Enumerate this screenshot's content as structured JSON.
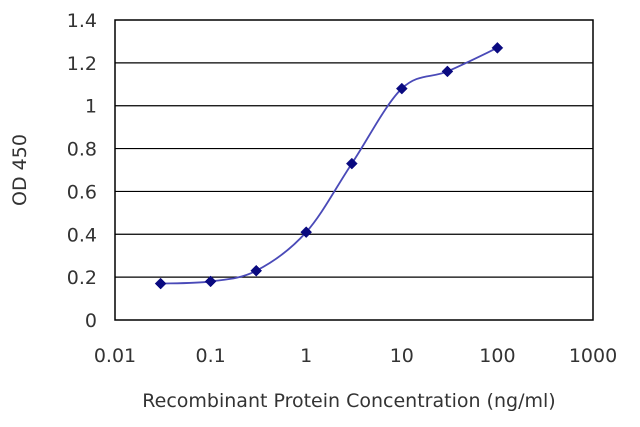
{
  "chart_data": {
    "type": "line",
    "xlabel": "Recombinant Protein Concentration (ng/ml)",
    "ylabel": "OD 450",
    "x_scale": "log",
    "xlim": [
      0.01,
      1000
    ],
    "ylim": [
      0,
      1.4
    ],
    "x_ticks": [
      0.01,
      0.1,
      1,
      10,
      100,
      1000
    ],
    "x_tick_labels": [
      "0.01",
      "0.1",
      "1",
      "10",
      "100",
      "1000"
    ],
    "y_ticks": [
      0,
      0.2,
      0.4,
      0.6,
      0.8,
      1,
      1.2,
      1.4
    ],
    "y_tick_labels": [
      "0",
      "0.2",
      "0.4",
      "0.6",
      "0.8",
      "1",
      "1.2",
      "1.4"
    ],
    "grid": "horizontal",
    "series": [
      {
        "x": [
          0.03,
          0.1,
          0.3,
          1,
          3,
          10,
          30,
          100
        ],
        "y": [
          0.17,
          0.18,
          0.23,
          0.41,
          0.73,
          1.08,
          1.16,
          1.27
        ]
      }
    ],
    "colors": {
      "line": "#4a4ab8",
      "marker": "#0a0a80",
      "grid": "#000000",
      "frame": "#000000"
    }
  }
}
